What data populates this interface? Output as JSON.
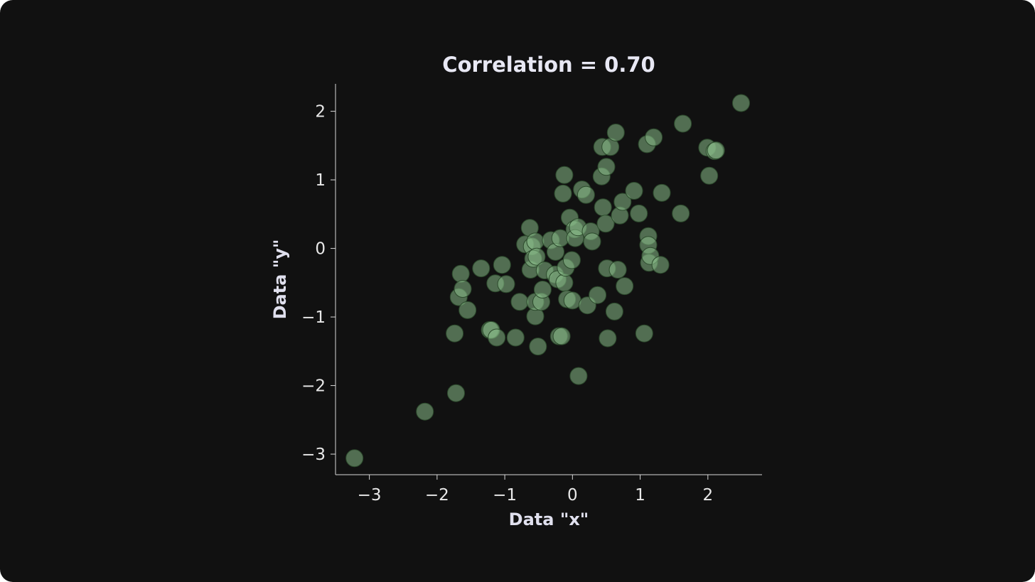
{
  "chart_data": {
    "type": "scatter",
    "title": "Correlation = 0.70",
    "xlabel": "Data \"x\"",
    "ylabel": "Data \"y\"",
    "xlim": [
      -3.5,
      2.8
    ],
    "ylim": [
      -3.3,
      2.4
    ],
    "xticks": [
      -3,
      -2,
      -1,
      0,
      1,
      2
    ],
    "xtick_labels": [
      "−3",
      "−2",
      "−1",
      "0",
      "1",
      "2"
    ],
    "yticks": [
      -3,
      -2,
      -1,
      0,
      1,
      2
    ],
    "ytick_labels": [
      "−3",
      "−2",
      "−1",
      "0",
      "1",
      "2"
    ],
    "grid": false,
    "colors": {
      "marker": "#88bb88",
      "marker_edge": "#2c4a2c",
      "background": "#111111"
    },
    "points": [
      [
        -3.22,
        -3.06
      ],
      [
        -2.18,
        -2.38
      ],
      [
        -1.72,
        -2.11
      ],
      [
        -1.74,
        -1.24
      ],
      [
        -1.65,
        -0.37
      ],
      [
        -1.68,
        -0.71
      ],
      [
        -1.62,
        -0.59
      ],
      [
        -1.55,
        -0.9
      ],
      [
        -1.35,
        -0.29
      ],
      [
        -1.22,
        -1.19
      ],
      [
        -1.2,
        -1.19
      ],
      [
        -1.12,
        -1.3
      ],
      [
        -1.14,
        -0.51
      ],
      [
        -1.04,
        -0.24
      ],
      [
        -0.98,
        -0.52
      ],
      [
        -0.84,
        -1.3
      ],
      [
        -0.78,
        -0.78
      ],
      [
        -0.7,
        0.06
      ],
      [
        -0.63,
        0.3
      ],
      [
        -0.62,
        -0.31
      ],
      [
        -0.6,
        0.03
      ],
      [
        -0.58,
        -0.15
      ],
      [
        -0.55,
        0.1
      ],
      [
        -0.53,
        -0.12
      ],
      [
        -0.55,
        -0.99
      ],
      [
        -0.55,
        -0.78
      ],
      [
        -0.51,
        -1.43
      ],
      [
        -0.46,
        -0.78
      ],
      [
        -0.44,
        -0.6
      ],
      [
        -0.41,
        -0.32
      ],
      [
        -0.32,
        0.12
      ],
      [
        -0.26,
        -0.38
      ],
      [
        -0.25,
        -0.05
      ],
      [
        -0.22,
        -0.45
      ],
      [
        -0.18,
        0.15
      ],
      [
        -0.2,
        -1.28
      ],
      [
        -0.16,
        -1.28
      ],
      [
        -0.12,
        -0.5
      ],
      [
        -0.1,
        -0.28
      ],
      [
        -0.14,
        0.8
      ],
      [
        -0.12,
        1.07
      ],
      [
        -0.08,
        -0.74
      ],
      [
        -0.04,
        0.45
      ],
      [
        -0.01,
        -0.17
      ],
      [
        0.0,
        -0.76
      ],
      [
        0.03,
        0.28
      ],
      [
        0.04,
        0.15
      ],
      [
        0.08,
        0.31
      ],
      [
        0.09,
        -1.86
      ],
      [
        0.14,
        0.86
      ],
      [
        0.2,
        0.78
      ],
      [
        0.22,
        -0.83
      ],
      [
        0.27,
        0.25
      ],
      [
        0.29,
        0.1
      ],
      [
        0.37,
        -0.68
      ],
      [
        0.43,
        1.05
      ],
      [
        0.44,
        1.48
      ],
      [
        0.45,
        0.6
      ],
      [
        0.49,
        0.36
      ],
      [
        0.5,
        1.19
      ],
      [
        0.51,
        -0.29
      ],
      [
        0.52,
        -1.31
      ],
      [
        0.56,
        1.48
      ],
      [
        0.62,
        -0.92
      ],
      [
        0.64,
        1.69
      ],
      [
        0.67,
        -0.31
      ],
      [
        0.7,
        0.48
      ],
      [
        0.74,
        0.68
      ],
      [
        0.77,
        -0.55
      ],
      [
        0.91,
        0.84
      ],
      [
        0.98,
        0.51
      ],
      [
        1.06,
        -1.24
      ],
      [
        1.1,
        1.52
      ],
      [
        1.12,
        0.18
      ],
      [
        1.12,
        0.05
      ],
      [
        1.13,
        -0.21
      ],
      [
        1.15,
        -0.11
      ],
      [
        1.2,
        1.62
      ],
      [
        1.3,
        -0.24
      ],
      [
        1.32,
        0.81
      ],
      [
        1.6,
        0.51
      ],
      [
        1.63,
        1.82
      ],
      [
        1.99,
        1.47
      ],
      [
        2.02,
        1.06
      ],
      [
        2.1,
        1.42
      ],
      [
        2.12,
        1.43
      ],
      [
        2.49,
        2.12
      ]
    ]
  }
}
